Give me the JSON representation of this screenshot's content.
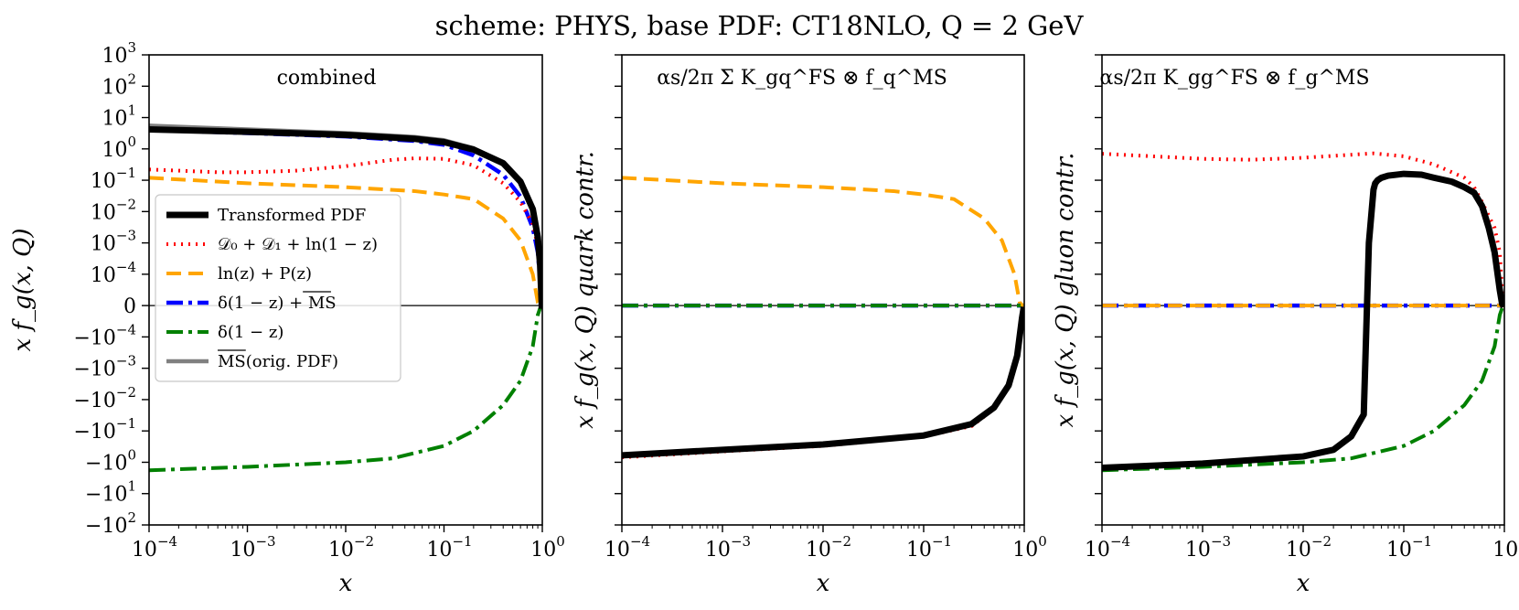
{
  "figure_title": "scheme: PHYS, base PDF: CT18NLO, Q = 2 GeV",
  "chart_data": [
    {
      "type": "line",
      "panel_title": "combined",
      "xlabel": "x",
      "ylabel": "x f_g(x, Q)",
      "xscale": "log",
      "yscale": "symlog",
      "symlog_linthresh": 0.0001,
      "xlim": [
        0.0001,
        1
      ],
      "ylim": [
        -100,
        1000
      ],
      "x_ticks": [
        {
          "base": "10",
          "exp": "−4",
          "value": 0.0001
        },
        {
          "base": "10",
          "exp": "−3",
          "value": 0.001
        },
        {
          "base": "10",
          "exp": "−2",
          "value": 0.01
        },
        {
          "base": "10",
          "exp": "−1",
          "value": 0.1
        },
        {
          "base": "10",
          "exp": "0",
          "value": 1
        }
      ],
      "y_ticks": [
        {
          "base": "10",
          "exp": "3",
          "value": 1000
        },
        {
          "base": "10",
          "exp": "2",
          "value": 100
        },
        {
          "base": "10",
          "exp": "1",
          "value": 10
        },
        {
          "base": "10",
          "exp": "0",
          "value": 1
        },
        {
          "base": "10",
          "exp": "−1",
          "value": 0.1
        },
        {
          "base": "10",
          "exp": "−2",
          "value": 0.01
        },
        {
          "base": "10",
          "exp": "−3",
          "value": 0.001
        },
        {
          "base": "10",
          "exp": "−4",
          "value": 0.0001
        },
        {
          "base": "0",
          "exp": "",
          "value": 0
        },
        {
          "base": "−10",
          "exp": "−4",
          "value": -0.0001
        },
        {
          "base": "−10",
          "exp": "−3",
          "value": -0.001
        },
        {
          "base": "−10",
          "exp": "−2",
          "value": -0.01
        },
        {
          "base": "−10",
          "exp": "−1",
          "value": -0.1
        },
        {
          "base": "−10",
          "exp": "0",
          "value": -1
        },
        {
          "base": "−10",
          "exp": "1",
          "value": -10
        },
        {
          "base": "−10",
          "exp": "2",
          "value": -100
        }
      ],
      "series": [
        {
          "name": "MSbar (orig. PDF)",
          "style": "gray",
          "x": [
            0.0001,
            0.001,
            0.01,
            0.05,
            0.1,
            0.2,
            0.4,
            0.6,
            0.8,
            0.9,
            0.95,
            0.99
          ],
          "y": [
            5.5,
            4.2,
            3.2,
            2.4,
            1.9,
            1.05,
            0.32,
            0.08,
            0.01,
            0.002,
            0.0003,
            1e-05
          ]
        },
        {
          "name": "delta(1-z) + MSbar",
          "style": "blue",
          "x": [
            0.0001,
            0.001,
            0.01,
            0.05,
            0.1,
            0.2,
            0.4,
            0.6,
            0.8,
            0.9,
            0.95,
            0.99
          ],
          "y": [
            4.0,
            3.2,
            2.5,
            1.8,
            1.35,
            0.62,
            0.15,
            0.03,
            0.003,
            0.0005,
            8e-05,
            5e-06
          ]
        },
        {
          "name": "ln(z) + P(z)",
          "style": "orange",
          "x": [
            0.0001,
            0.001,
            0.01,
            0.05,
            0.1,
            0.2,
            0.4,
            0.6,
            0.8,
            0.9,
            0.95,
            0.99
          ],
          "y": [
            0.12,
            0.08,
            0.06,
            0.045,
            0.035,
            0.025,
            0.006,
            0.0012,
            0.0001,
            1e-05,
            2e-06,
            5e-07
          ]
        },
        {
          "name": "D0 + D1 + ln(1-z)",
          "style": "red",
          "x": [
            0.0001,
            0.0005,
            0.001,
            0.003,
            0.01,
            0.03,
            0.05,
            0.1,
            0.2,
            0.4,
            0.6,
            0.8,
            0.9,
            0.95,
            0.99
          ],
          "y": [
            0.22,
            0.18,
            0.18,
            0.2,
            0.28,
            0.45,
            0.5,
            0.48,
            0.3,
            0.08,
            0.02,
            0.004,
            0.0008,
            0.0001,
            3e-06
          ]
        },
        {
          "name": "delta(1-z)",
          "style": "green",
          "x": [
            0.0001,
            0.001,
            0.01,
            0.03,
            0.1,
            0.2,
            0.4,
            0.6,
            0.8,
            0.9,
            0.95,
            0.99
          ],
          "y": [
            -1.8,
            -1.4,
            -1.0,
            -0.75,
            -0.3,
            -0.1,
            -0.015,
            -0.0025,
            -0.0002,
            -3e-05,
            -8e-06,
            -1.5e-06
          ]
        },
        {
          "name": "Transformed PDF",
          "style": "black",
          "x": [
            0.0001,
            0.001,
            0.01,
            0.05,
            0.1,
            0.2,
            0.4,
            0.6,
            0.8,
            0.9,
            0.95,
            0.99
          ],
          "y": [
            4.2,
            3.5,
            2.8,
            2.1,
            1.65,
            0.95,
            0.35,
            0.09,
            0.012,
            0.0015,
            0.0002,
            -1e-05
          ]
        }
      ],
      "legend": {
        "placement": "lower-left",
        "entries": [
          {
            "label": "Transformed PDF",
            "style": "black"
          },
          {
            "label": "𝒟₀ + 𝒟₁ + ln(1 − z)",
            "style": "red"
          },
          {
            "label": "ln(z) + P(z)",
            "style": "orange"
          },
          {
            "label": "δ(1 − z) + MS",
            "style": "blue",
            "overline": "MS"
          },
          {
            "label": "δ(1 − z)",
            "style": "green"
          },
          {
            "label": "MS(orig. PDF)",
            "style": "gray",
            "overline": "MS"
          }
        ]
      }
    },
    {
      "type": "line",
      "panel_title": "αs/2π Σ K_gq^FS ⊗ f_q^MS",
      "xlabel": "x",
      "ylabel": "x f_g(x, Q)  quark contr.",
      "xscale": "log",
      "yscale": "symlog",
      "xlim": [
        0.0001,
        1
      ],
      "ylim": [
        -100,
        1000
      ],
      "series": [
        {
          "name": "ln(z) + P(z)",
          "style": "orange",
          "x": [
            0.0001,
            0.001,
            0.01,
            0.05,
            0.1,
            0.2,
            0.4,
            0.6,
            0.8,
            0.9,
            0.95,
            0.99
          ],
          "y": [
            0.12,
            0.08,
            0.06,
            0.045,
            0.035,
            0.025,
            0.006,
            0.0012,
            0.0001,
            1e-05,
            2e-06,
            5e-07
          ]
        },
        {
          "name": "delta(1-z) + MSbar",
          "style": "blue",
          "x": [
            0.0001,
            1
          ],
          "y": [
            0,
            0
          ]
        },
        {
          "name": "delta(1-z)",
          "style": "green",
          "x": [
            0.0001,
            1
          ],
          "y": [
            0,
            0
          ]
        },
        {
          "name": "D0 + D1 + ln(1-z)",
          "style": "red",
          "x": [
            0.0001,
            0.001,
            0.01,
            0.1,
            0.3,
            0.5,
            0.7,
            0.85,
            0.95,
            0.99
          ],
          "y": [
            -0.7,
            -0.45,
            -0.3,
            -0.15,
            -0.07,
            -0.02,
            -0.004,
            -0.0005,
            -5e-05,
            -5e-06
          ]
        },
        {
          "name": "Transformed PDF",
          "style": "black",
          "x": [
            0.0001,
            0.001,
            0.01,
            0.1,
            0.3,
            0.5,
            0.7,
            0.85,
            0.95,
            0.99
          ],
          "y": [
            -0.6,
            -0.4,
            -0.27,
            -0.14,
            -0.06,
            -0.018,
            -0.0035,
            -0.0004,
            -4e-05,
            -4e-06
          ]
        }
      ]
    },
    {
      "type": "line",
      "panel_title": "αs/2π K_gg^FS ⊗ f_g^MS",
      "xlabel": "x",
      "ylabel": "x f_g(x, Q)  gluon contr.",
      "xscale": "log",
      "yscale": "symlog",
      "xlim": [
        0.0001,
        1
      ],
      "ylim": [
        -100,
        1000
      ],
      "series": [
        {
          "name": "D0 + D1 + ln(1-z)",
          "style": "red",
          "x": [
            0.0001,
            0.001,
            0.003,
            0.01,
            0.03,
            0.05,
            0.1,
            0.2,
            0.4,
            0.5,
            0.6,
            0.8,
            0.9,
            0.95,
            0.99
          ],
          "y": [
            0.7,
            0.48,
            0.45,
            0.52,
            0.65,
            0.72,
            0.58,
            0.32,
            0.12,
            0.06,
            0.02,
            0.003,
            0.0005,
            5e-05,
            3e-06
          ]
        },
        {
          "name": "delta(1-z) + MSbar",
          "style": "blue",
          "x": [
            0.0001,
            1
          ],
          "y": [
            0,
            0
          ]
        },
        {
          "name": "ln(z) + P(z)",
          "style": "orange",
          "x": [
            0.0001,
            1
          ],
          "y": [
            0,
            0
          ]
        },
        {
          "name": "delta(1-z)",
          "style": "green",
          "x": [
            0.0001,
            0.001,
            0.01,
            0.03,
            0.1,
            0.2,
            0.4,
            0.6,
            0.8,
            0.9,
            0.95,
            0.99
          ],
          "y": [
            -1.8,
            -1.4,
            -1.0,
            -0.75,
            -0.3,
            -0.1,
            -0.015,
            -0.0025,
            -0.0002,
            -3e-05,
            -8e-06,
            -1.5e-06
          ]
        },
        {
          "name": "Transformed PDF",
          "style": "black",
          "x": [
            0.0001,
            0.001,
            0.01,
            0.02,
            0.03,
            0.04,
            0.045,
            0.05,
            0.052,
            0.055,
            0.06,
            0.07,
            0.1,
            0.15,
            0.2,
            0.3,
            0.4,
            0.5,
            0.6,
            0.7,
            0.8,
            0.9,
            0.95,
            0.99
          ],
          "y": [
            -1.5,
            -1.1,
            -0.65,
            -0.4,
            -0.15,
            -0.03,
            0.001,
            0.05,
            0.08,
            0.1,
            0.12,
            0.14,
            0.16,
            0.15,
            0.12,
            0.09,
            0.06,
            0.04,
            0.015,
            0.003,
            0.0005,
            5e-05,
            5e-06,
            -3e-06
          ]
        }
      ]
    }
  ],
  "styles": {
    "black": {
      "color": "#000000",
      "width": 7,
      "dash": ""
    },
    "red": {
      "color": "#ff0000",
      "width": 4,
      "dash": "2 6"
    },
    "orange": {
      "color": "#ffa500",
      "width": 4,
      "dash": "16 8"
    },
    "blue": {
      "color": "#0000ff",
      "width": 4.5,
      "dash": "18 6 4 6"
    },
    "green": {
      "color": "#008000",
      "width": 4,
      "dash": "18 6 4 6"
    },
    "gray": {
      "color": "#808080",
      "width": 4.5,
      "dash": ""
    }
  }
}
